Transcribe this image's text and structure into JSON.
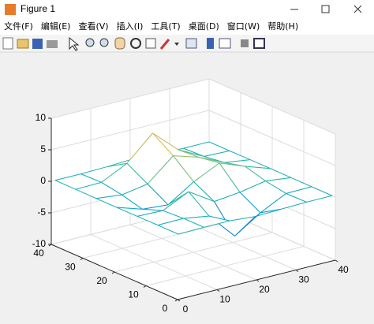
{
  "window": {
    "title": "Figure 1",
    "menu": [
      "文件(F)",
      "编辑(E)",
      "查看(V)",
      "插入(I)",
      "工具(T)",
      "桌面(D)",
      "窗口(W)",
      "帮助(H)"
    ]
  },
  "chart_data": {
    "type": "mesh3d",
    "x": [
      1,
      7.5,
      14,
      20.5,
      27,
      33.5,
      40
    ],
    "y": [
      1,
      7.5,
      14,
      20.5,
      27,
      33.5,
      40
    ],
    "z": [
      [
        0,
        0.07,
        0.08,
        -0.25,
        -0.11,
        0,
        0
      ],
      [
        0,
        0.05,
        -0.59,
        -4.76,
        -2.09,
        -0.06,
        0
      ],
      [
        -0.02,
        -0.13,
        1.85,
        -0.72,
        -0.27,
        0.5,
        0.01
      ],
      [
        -0.03,
        -1.33,
        -1.65,
        0.98,
        2.94,
        1.41,
        0.03
      ],
      [
        -0.03,
        -0.48,
        0.23,
        3.69,
        2.44,
        0.58,
        0.02
      ],
      [
        -0.01,
        0.08,
        2.08,
        5.86,
        2.2,
        0.13,
        0
      ],
      [
        0,
        0,
        0.1,
        0.3,
        0.1,
        0,
        0
      ]
    ],
    "xlim": [
      0,
      40
    ],
    "ylim": [
      0,
      40
    ],
    "zlim": [
      -10,
      10
    ],
    "xticks": [
      0,
      10,
      20,
      30,
      40
    ],
    "yticks": [
      0,
      10,
      20,
      30,
      40
    ],
    "zticks": [
      -10,
      -5,
      0,
      5,
      10
    ],
    "grid": true,
    "clim": [
      -6.5,
      8
    ],
    "colormap": [
      "#352a87",
      "#0f5cdd",
      "#1481d6",
      "#06a4ca",
      "#2eb7a4",
      "#87bf77",
      "#d1bb59",
      "#fec832",
      "#f9fb0e"
    ]
  }
}
